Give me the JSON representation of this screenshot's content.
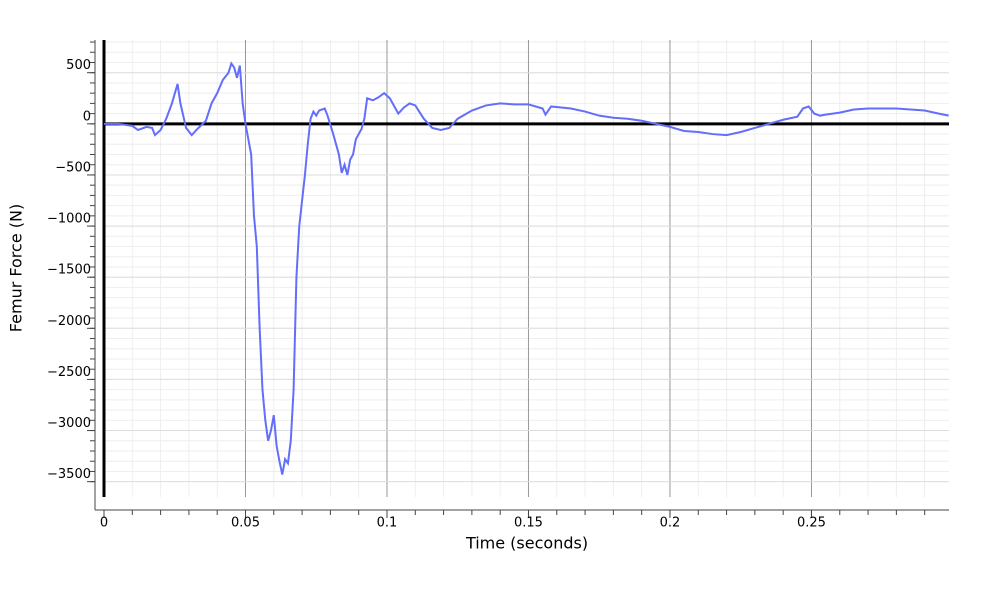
{
  "chart_data": {
    "type": "line",
    "x_label": "Time (seconds)",
    "y_label": "Femur Force (N)",
    "xlim": [
      0,
      0.2986
    ],
    "ylim": [
      -3650,
      820
    ],
    "xticks": [
      0,
      0.05,
      0.1,
      0.15,
      0.2,
      0.25
    ],
    "yticks": [
      {
        "value": -3500,
        "label": "−3500"
      },
      {
        "value": -3000,
        "label": "−3000"
      },
      {
        "value": -2500,
        "label": "−2500"
      },
      {
        "value": -2000,
        "label": "−2000"
      },
      {
        "value": -1500,
        "label": "−1500"
      },
      {
        "value": -1000,
        "label": "−1000"
      },
      {
        "value": -500,
        "label": "−500"
      },
      0,
      500
    ],
    "grid": true,
    "series": [
      {
        "color": "#636efa",
        "x": [
          0,
          0.005,
          0.01,
          0.012,
          0.015,
          0.017,
          0.018,
          0.02,
          0.022,
          0.024,
          0.026,
          0.027,
          0.029,
          0.031,
          0.033,
          0.036,
          0.038,
          0.04,
          0.042,
          0.044,
          0.045,
          0.046,
          0.047,
          0.048,
          0.049,
          0.05,
          0.052,
          0.053,
          0.054,
          0.055,
          0.056,
          0.057,
          0.058,
          0.059,
          0.06,
          0.061,
          0.062,
          0.063,
          0.064,
          0.065,
          0.066,
          0.067,
          0.068,
          0.069,
          0.071,
          0.072,
          0.073,
          0.074,
          0.075,
          0.076,
          0.078,
          0.079,
          0.081,
          0.083,
          0.084,
          0.085,
          0.086,
          0.087,
          0.088,
          0.089,
          0.091,
          0.092,
          0.093,
          0.095,
          0.097,
          0.099,
          0.101,
          0.103,
          0.104,
          0.106,
          0.108,
          0.11,
          0.113,
          0.116,
          0.119,
          0.122,
          0.125,
          0.13,
          0.135,
          0.14,
          0.145,
          0.15,
          0.155,
          0.156,
          0.158,
          0.165,
          0.17,
          0.175,
          0.18,
          0.185,
          0.19,
          0.195,
          0.2,
          0.205,
          0.21,
          0.215,
          0.22,
          0.225,
          0.23,
          0.235,
          0.24,
          0.245,
          0.247,
          0.249,
          0.251,
          0.253,
          0.255,
          0.26,
          0.265,
          0.27,
          0.275,
          0.28,
          0.285,
          0.29,
          0.295,
          0.2985
        ],
        "values": [
          0,
          0,
          -20,
          -60,
          -30,
          -40,
          -110,
          -60,
          50,
          200,
          390,
          200,
          -40,
          -110,
          -50,
          30,
          200,
          300,
          430,
          500,
          590,
          550,
          450,
          570,
          200,
          0,
          -300,
          -900,
          -1200,
          -2000,
          -2600,
          -2900,
          -3100,
          -3000,
          -2850,
          -3150,
          -3300,
          -3430,
          -3280,
          -3320,
          -3100,
          -2600,
          -1500,
          -1000,
          -500,
          -200,
          50,
          120,
          80,
          130,
          150,
          80,
          -100,
          -300,
          -480,
          -400,
          -500,
          -350,
          -300,
          -150,
          -50,
          50,
          250,
          230,
          260,
          300,
          250,
          150,
          100,
          160,
          200,
          180,
          50,
          -40,
          -60,
          -40,
          50,
          130,
          180,
          200,
          190,
          190,
          150,
          90,
          170,
          150,
          120,
          80,
          60,
          50,
          30,
          0,
          -30,
          -70,
          -80,
          -100,
          -110,
          -80,
          -40,
          0,
          40,
          70,
          150,
          170,
          100,
          80,
          90,
          110,
          140,
          150,
          150,
          150,
          140,
          130,
          100,
          80
        ]
      }
    ]
  }
}
